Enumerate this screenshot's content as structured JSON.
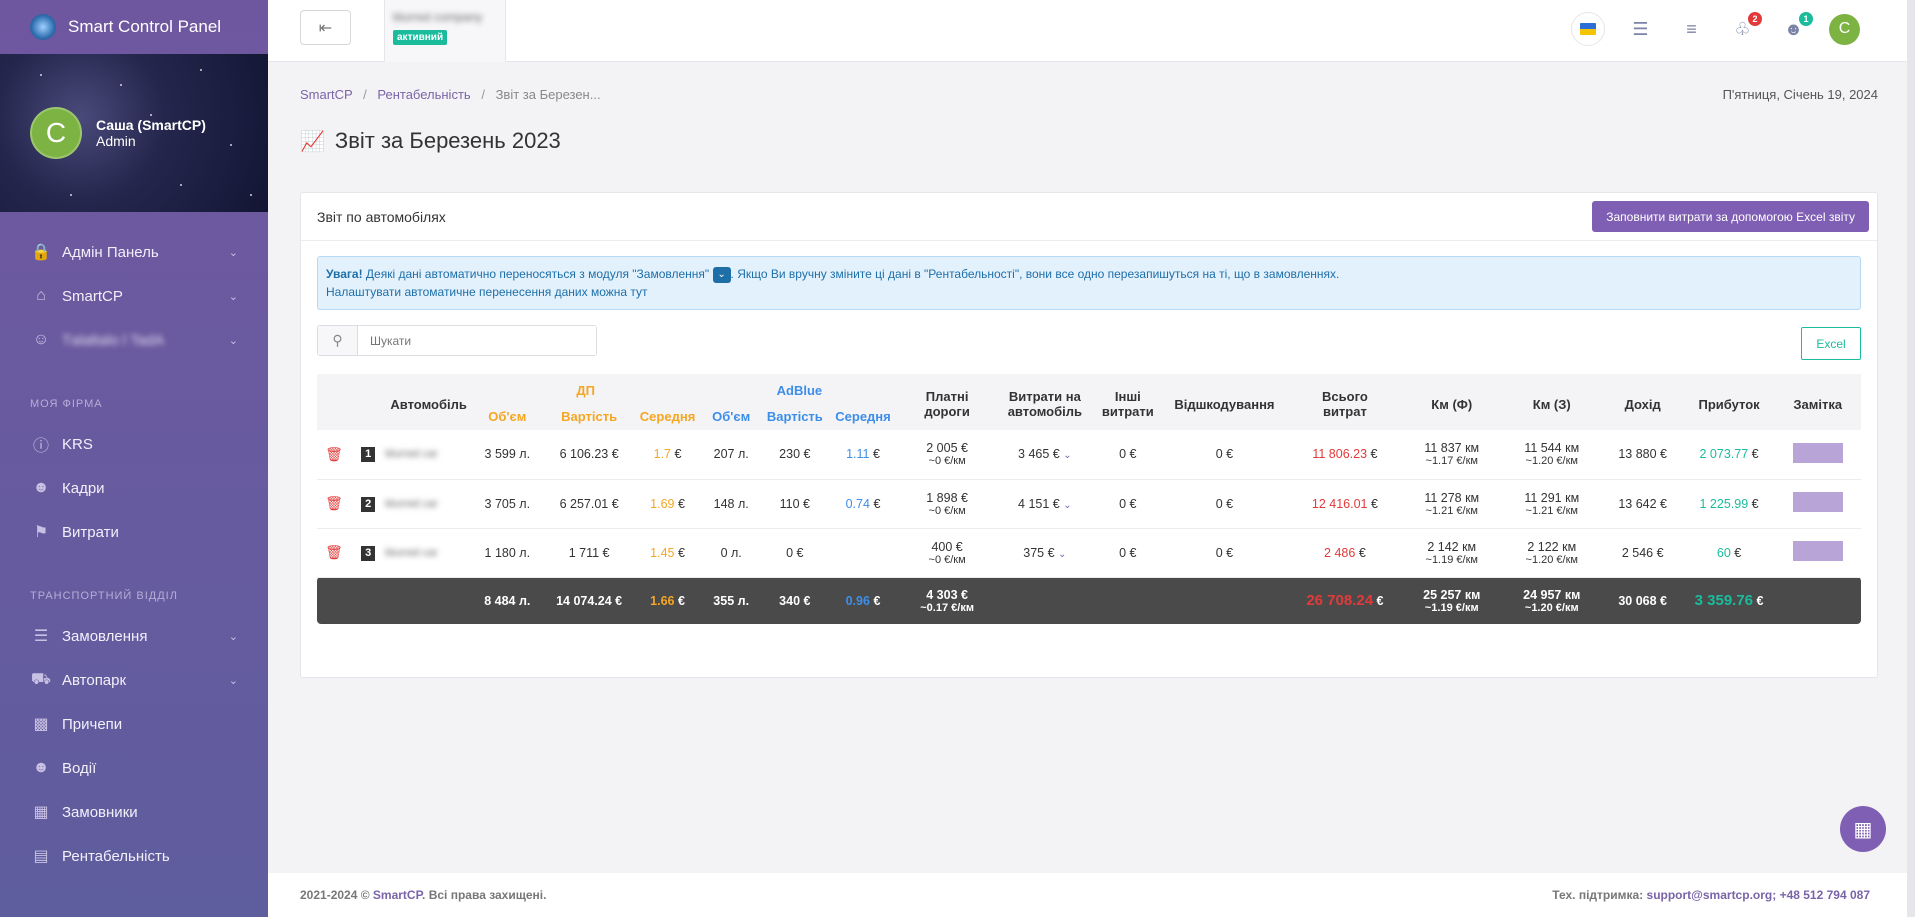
{
  "app": {
    "title": "Smart Control Panel"
  },
  "user": {
    "name": "Саша (SmartCP)",
    "role": "Admin",
    "initial": "С"
  },
  "sidebar": {
    "items_top": [
      {
        "label": "Адмін Панель",
        "icon": "lock-icon",
        "has_chevron": true
      },
      {
        "label": "SmartCP",
        "icon": "home-icon",
        "has_chevron": true
      },
      {
        "label": "Tаlаltаlo l TadA",
        "icon": "user-circle-icon",
        "has_chevron": true
      }
    ],
    "section1": "МОЯ ФІРМА",
    "items_firm": [
      {
        "label": "KRS",
        "icon": "info-icon"
      },
      {
        "label": "Кадри",
        "icon": "users-icon"
      },
      {
        "label": "Витрати",
        "icon": "expenses-icon"
      }
    ],
    "section2": "ТРАНСПОРТНИЙ ВІДДІЛ",
    "items_transport": [
      {
        "label": "Замовлення",
        "icon": "cart-icon",
        "has_chevron": true
      },
      {
        "label": "Автопарк",
        "icon": "truck-icon",
        "has_chevron": true
      },
      {
        "label": "Причепи",
        "icon": "trailer-icon"
      },
      {
        "label": "Водії",
        "icon": "drivers-icon"
      },
      {
        "label": "Замовники",
        "icon": "building-icon"
      },
      {
        "label": "Рентабельність",
        "icon": "chart-icon"
      }
    ]
  },
  "topbar": {
    "back_label": "⇤",
    "company_name": "blurred company",
    "company_status": "активний",
    "notifications_count": "2",
    "users_count": "1"
  },
  "breadcrumb": {
    "home": "SmartCP",
    "parent": "Рентабельність",
    "current": "Звіт за Березен..."
  },
  "date": "П'ятниця, Січень 19, 2024",
  "page_title": "Звіт за Березень 2023",
  "card": {
    "title": "Звіт по автомобілях",
    "fill_button": "Заповнити витрати за допомогою Excel звіту",
    "alert_bold": "Увага!",
    "alert_text1": " Деякі дані автоматично переносяться з модуля \"Замовлення\" ",
    "alert_text2": ". Якщо Ви вручну зміните ці дані в \"Рентабельності\", вони все одно перезапишуться на ті, що в замовленнях.",
    "alert_line2": "Налаштувати автоматичне перенесення даних можна тут",
    "search_placeholder": "Шукати",
    "excel_button": "Excel"
  },
  "table": {
    "headers": {
      "car": "Автомобіль",
      "dp": "ДП",
      "adblue": "AdBlue",
      "volume": "Об'єм",
      "cost": "Вартість",
      "avg": "Середня",
      "toll1": "Платні",
      "toll2": "дороги",
      "carexp1": "Витрати на",
      "carexp2": "автомобіль",
      "other1": "Інші",
      "other2": "витрати",
      "refund": "Відшкодування",
      "total1": "Всього",
      "total2": "витрат",
      "kmf": "Км (Ф)",
      "kmz": "Км (З)",
      "income": "Дохід",
      "profit": "Прибуток",
      "note": "Замітка"
    },
    "rows": [
      {
        "n": "1",
        "car": "blurred car",
        "dp_vol": "3 599 л.",
        "dp_cost": "6 106.23 €",
        "dp_avg": "1.7",
        "ab_vol": "207 л.",
        "ab_cost": "230 €",
        "ab_avg": "1.11",
        "toll": "2 005 €",
        "toll_km": "~0 €/км",
        "carexp": "3 465 €",
        "other": "0 €",
        "refund": "0 €",
        "total": "11 806.23",
        "kmf": "11 837 км",
        "kmf_rate": "~1.17 €/км",
        "kmz": "11 544 км",
        "kmz_rate": "~1.20 €/км",
        "income": "13 880 €",
        "profit": "2 073.77"
      },
      {
        "n": "2",
        "car": "blurred car",
        "dp_vol": "3 705 л.",
        "dp_cost": "6 257.01 €",
        "dp_avg": "1.69",
        "ab_vol": "148 л.",
        "ab_cost": "110 €",
        "ab_avg": "0.74",
        "toll": "1 898 €",
        "toll_km": "~0 €/км",
        "carexp": "4 151 €",
        "other": "0 €",
        "refund": "0 €",
        "total": "12 416.01",
        "kmf": "11 278 км",
        "kmf_rate": "~1.21 €/км",
        "kmz": "11 291 км",
        "kmz_rate": "~1.21 €/км",
        "income": "13 642 €",
        "profit": "1 225.99"
      },
      {
        "n": "3",
        "car": "blurred car",
        "dp_vol": "1 180 л.",
        "dp_cost": "1 711 €",
        "dp_avg": "1.45",
        "ab_vol": "0 л.",
        "ab_cost": "0 €",
        "ab_avg": "",
        "toll": "400 €",
        "toll_km": "~0 €/км",
        "carexp": "375 €",
        "other": "0 €",
        "refund": "0 €",
        "total": "2 486",
        "kmf": "2 142 км",
        "kmf_rate": "~1.19 €/км",
        "kmz": "2 122 км",
        "kmz_rate": "~1.20 €/км",
        "income": "2 546 €",
        "profit": "60"
      }
    ],
    "totals": {
      "dp_vol": "8 484 л.",
      "dp_cost": "14 074.24 €",
      "dp_avg": "1.66",
      "ab_vol": "355 л.",
      "ab_cost": "340 €",
      "ab_avg": "0.96",
      "toll": "4 303 €",
      "toll_km": "~0.17 €/км",
      "total": "26 708.24",
      "kmf": "25 257 км",
      "kmf_rate": "~1.19 €/км",
      "kmz": "24 957 км",
      "kmz_rate": "~1.20 €/км",
      "income": "30 068 €",
      "profit": "3 359.76"
    },
    "euro": "€"
  },
  "footer": {
    "copyright_prefix": "2021-2024 © ",
    "copyright_brand": "SmartCP",
    "copyright_suffix": ". Всі права захищені.",
    "support_label": "Тех. підтримка: ",
    "support_email": "support@smartcp.org",
    "support_phone": "; +48 512 794 087"
  },
  "colors": {
    "accent": "#7f5fb3",
    "teal": "#1abc9c",
    "red": "#e23a3a",
    "orange": "#f5a623",
    "blue": "#3d8ee8"
  }
}
